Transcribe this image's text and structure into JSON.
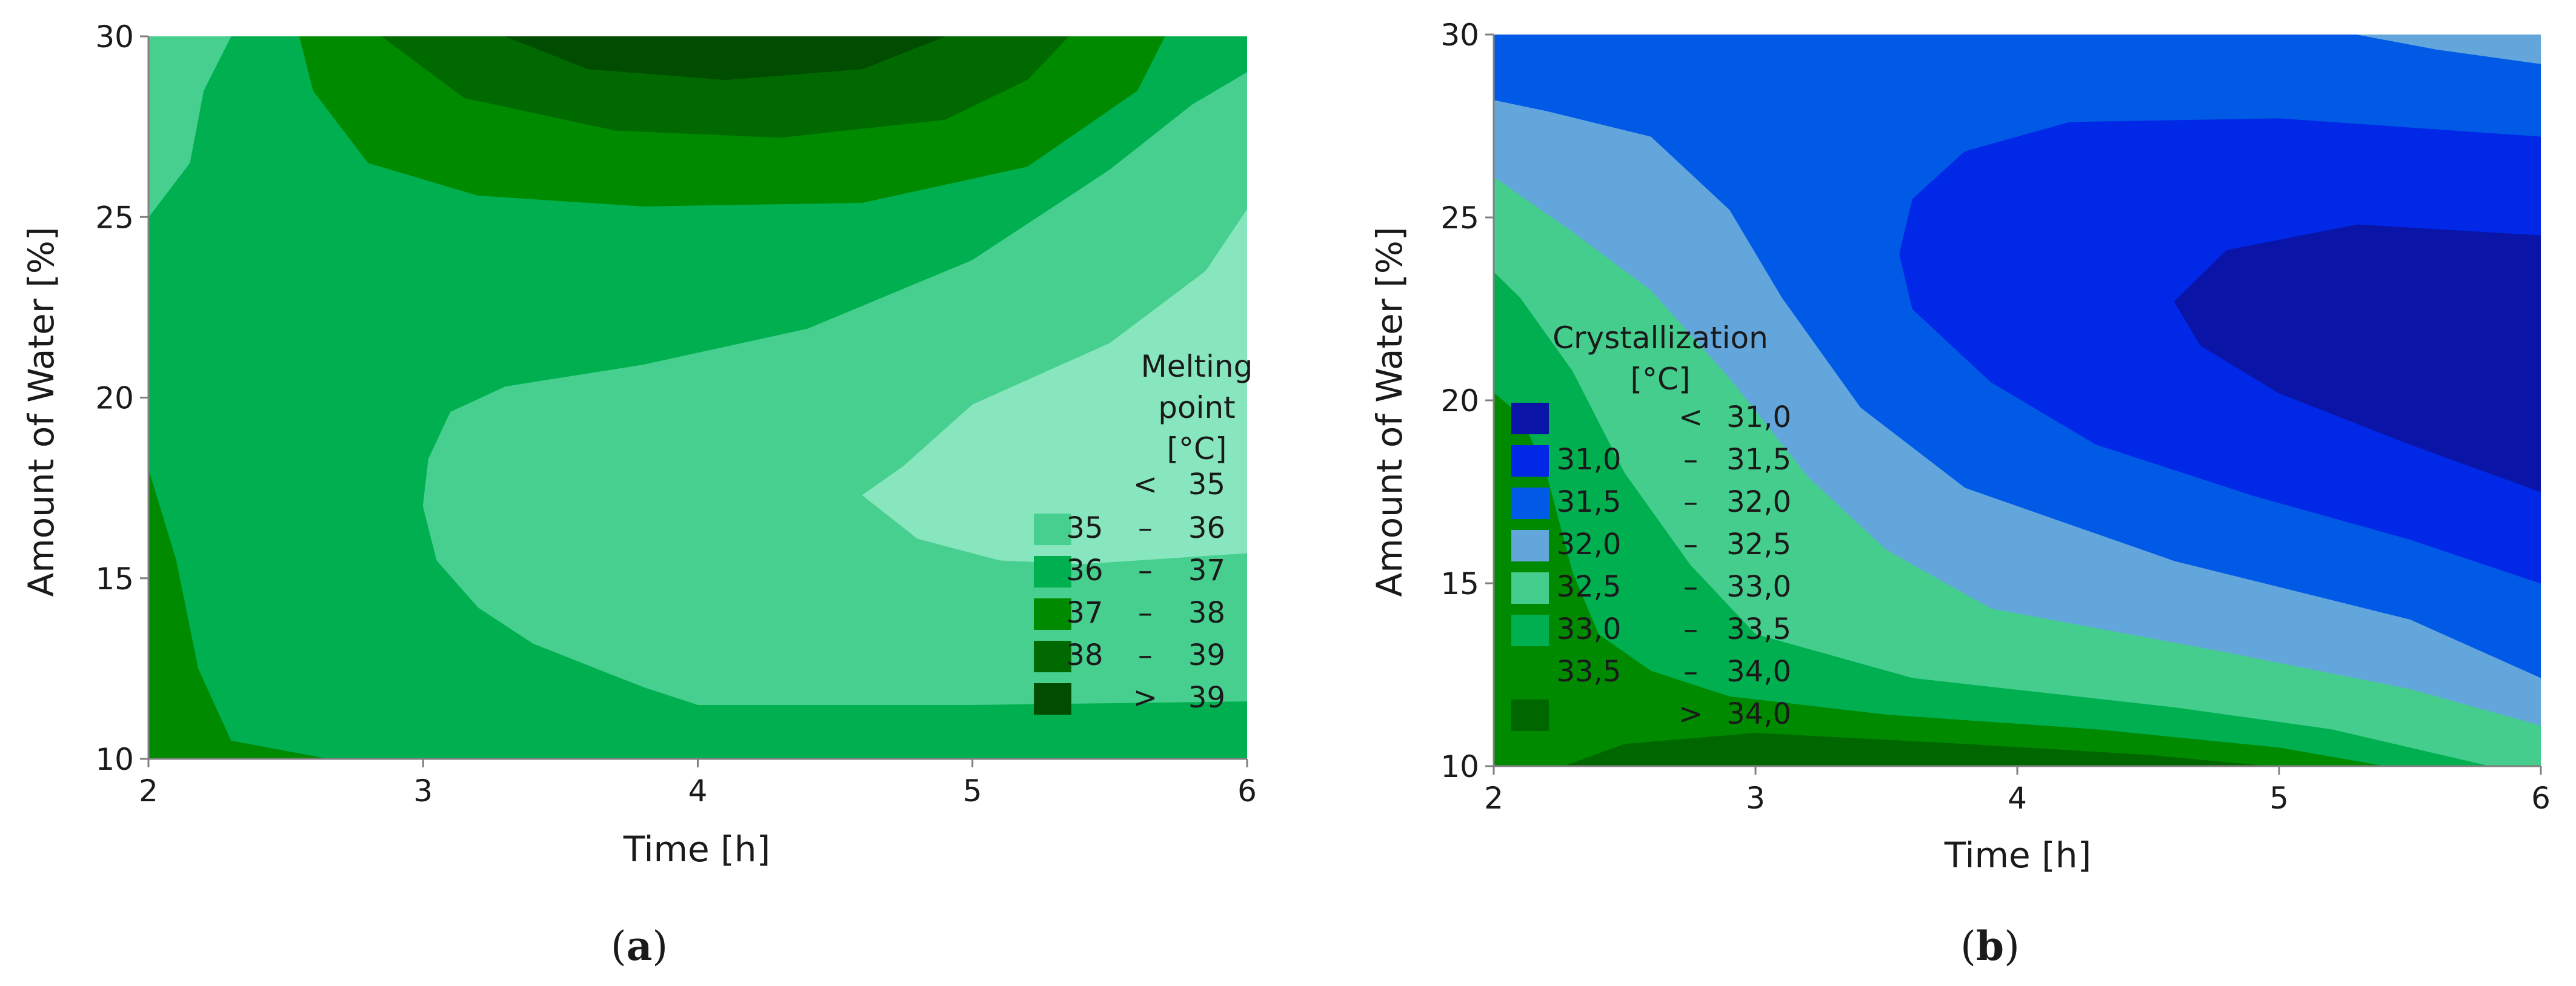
{
  "chart_data": [
    {
      "type": "contour",
      "panel_label": "a",
      "caption": {
        "open": "(",
        "letter": "a",
        "close": ")"
      },
      "xlabel": "Time  [h]",
      "ylabel": "Amount of Water  [%]",
      "xlim": [
        2,
        6
      ],
      "ylim": [
        10,
        30
      ],
      "xticks": [
        "2",
        "3",
        "4",
        "5",
        "6"
      ],
      "yticks": [
        "10",
        "15",
        "20",
        "25",
        "30"
      ],
      "legend": {
        "title": [
          "Melting",
          "point",
          "[°C]"
        ],
        "placement": "right, inside plot",
        "entries": [
          {
            "lo": "",
            "sep": "<",
            "hi": "35",
            "color": "#87e6be"
          },
          {
            "lo": "35",
            "sep": "–",
            "hi": "36",
            "color": "#47cf8f"
          },
          {
            "lo": "36",
            "sep": "–",
            "hi": "37",
            "color": "#00b050"
          },
          {
            "lo": "37",
            "sep": "–",
            "hi": "38",
            "color": "#008a00"
          },
          {
            "lo": "38",
            "sep": "–",
            "hi": "39",
            "color": "#006a00"
          },
          {
            "lo": "",
            "sep": ">",
            "hi": "39",
            "color": "#004c00"
          }
        ]
      },
      "regions": [
        {
          "level": "36 – 37",
          "color": "#00b050",
          "points": [
            [
              2,
              10
            ],
            [
              6,
              10
            ],
            [
              6,
              30
            ],
            [
              2,
              30
            ]
          ]
        },
        {
          "level": "37 – 38",
          "color": "#008a00",
          "points": [
            [
              2,
              10
            ],
            [
              2.65,
              10
            ],
            [
              2.3,
              10.5
            ],
            [
              2.18,
              12.5
            ],
            [
              2.1,
              15.5
            ],
            [
              2.0,
              18
            ],
            [
              2,
              18
            ]
          ]
        },
        {
          "level": "35 – 36",
          "color": "#47cf8f",
          "points": [
            [
              2.0,
              25
            ],
            [
              2.15,
              26.5
            ],
            [
              2.2,
              28.5
            ],
            [
              2.3,
              30
            ],
            [
              2.0,
              30
            ]
          ]
        },
        {
          "level": "35 – 36",
          "color": "#47cf8f",
          "points": [
            [
              6,
              11.6
            ],
            [
              5,
              11.5
            ],
            [
              4,
              11.5
            ],
            [
              3.8,
              12.0
            ],
            [
              3.4,
              13.2
            ],
            [
              3.2,
              14.2
            ],
            [
              3.05,
              15.5
            ],
            [
              3.0,
              17.0
            ],
            [
              3.02,
              18.3
            ],
            [
              3.1,
              19.6
            ],
            [
              3.3,
              20.3
            ],
            [
              3.8,
              20.9
            ],
            [
              4.4,
              21.9
            ],
            [
              5.0,
              23.8
            ],
            [
              5.5,
              26.3
            ],
            [
              5.8,
              28.1
            ],
            [
              6,
              29.0
            ]
          ]
        },
        {
          "level": "< 35",
          "color": "#87e6be",
          "points": [
            [
              6,
              15.7
            ],
            [
              5.4,
              15.4
            ],
            [
              5.1,
              15.5
            ],
            [
              4.8,
              16.1
            ],
            [
              4.6,
              17.3
            ],
            [
              4.75,
              18.1
            ],
            [
              5.0,
              19.8
            ],
            [
              5.5,
              21.5
            ],
            [
              5.85,
              23.5
            ],
            [
              6,
              25.2
            ]
          ]
        },
        {
          "level": "37 – 38",
          "color": "#008a00",
          "points": [
            [
              2.55,
              30
            ],
            [
              2.6,
              28.5
            ],
            [
              2.8,
              26.5
            ],
            [
              3.2,
              25.6
            ],
            [
              3.8,
              25.3
            ],
            [
              4.6,
              25.4
            ],
            [
              5.2,
              26.4
            ],
            [
              5.6,
              28.5
            ],
            [
              5.7,
              30
            ]
          ]
        },
        {
          "level": "38 – 39",
          "color": "#006a00",
          "points": [
            [
              2.85,
              30
            ],
            [
              3.15,
              28.3
            ],
            [
              3.7,
              27.4
            ],
            [
              4.3,
              27.2
            ],
            [
              4.9,
              27.7
            ],
            [
              5.2,
              28.8
            ],
            [
              5.35,
              30
            ]
          ]
        },
        {
          "level": "> 39",
          "color": "#004c00",
          "points": [
            [
              3.3,
              30
            ],
            [
              3.6,
              29.1
            ],
            [
              4.1,
              28.8
            ],
            [
              4.6,
              29.1
            ],
            [
              4.9,
              30
            ]
          ]
        }
      ]
    },
    {
      "type": "contour",
      "panel_label": "b",
      "caption": {
        "open": "(",
        "letter": "b",
        "close": ")"
      },
      "xlabel": "Time  [h]",
      "ylabel": "Amount of Water  [%]",
      "xlim": [
        2,
        6
      ],
      "ylim": [
        10,
        30
      ],
      "xticks": [
        "2",
        "3",
        "4",
        "5",
        "6"
      ],
      "yticks": [
        "10",
        "15",
        "20",
        "25",
        "30"
      ],
      "legend": {
        "title": [
          "Crystallization",
          "[°C]"
        ],
        "placement": "left, inside plot",
        "entries": [
          {
            "lo": "",
            "sep": "<",
            "hi": "31,0",
            "color": "#0a14a6"
          },
          {
            "lo": "31,0",
            "sep": "–",
            "hi": "31,5",
            "color": "#0028e6"
          },
          {
            "lo": "31,5",
            "sep": "–",
            "hi": "32,0",
            "color": "#005ae6"
          },
          {
            "lo": "32,0",
            "sep": "–",
            "hi": "32,5",
            "color": "#63a6dc"
          },
          {
            "lo": "32,5",
            "sep": "–",
            "hi": "33,0",
            "color": "#44cd8d"
          },
          {
            "lo": "33,0",
            "sep": "–",
            "hi": "33,5",
            "color": "#00b050"
          },
          {
            "lo": "33,5",
            "sep": "–",
            "hi": "34,0",
            "color": "#008a00"
          },
          {
            "lo": "",
            "sep": ">",
            "hi": "34,0",
            "color": "#006600"
          }
        ]
      },
      "regions": [
        {
          "level": "31,5 – 32,0",
          "color": "#005ae6",
          "points": [
            [
              2,
              10
            ],
            [
              6,
              10
            ],
            [
              6,
              30
            ],
            [
              2,
              30
            ]
          ]
        },
        {
          "level": "32,0 – 32,5",
          "color": "#63a6dc",
          "points": [
            [
              2,
              10
            ],
            [
              6,
              10
            ],
            [
              6,
              12.4
            ],
            [
              5.5,
              14.0
            ],
            [
              4.6,
              15.6
            ],
            [
              3.8,
              17.6
            ],
            [
              3.4,
              19.8
            ],
            [
              3.1,
              22.8
            ],
            [
              2.9,
              25.2
            ],
            [
              2.6,
              27.2
            ],
            [
              2.2,
              27.9
            ],
            [
              2,
              28.2
            ]
          ]
        },
        {
          "level": "32,0 – 32,5",
          "color": "#63a6dc",
          "points": [
            [
              6,
              29.2
            ],
            [
              5.6,
              29.6
            ],
            [
              5.3,
              30
            ],
            [
              6,
              30
            ]
          ]
        },
        {
          "level": "32,5 – 33,0",
          "color": "#44cd8d",
          "points": [
            [
              2,
              10
            ],
            [
              6,
              10
            ],
            [
              6,
              11.1
            ],
            [
              5.5,
              12.1
            ],
            [
              4.8,
              13.1
            ],
            [
              3.9,
              14.3
            ],
            [
              3.5,
              15.9
            ],
            [
              3.2,
              17.9
            ],
            [
              2.9,
              20.6
            ],
            [
              2.6,
              23.0
            ],
            [
              2.3,
              24.6
            ],
            [
              2,
              26.1
            ]
          ]
        },
        {
          "level": "33,0 – 33,5",
          "color": "#00b050",
          "points": [
            [
              2,
              10
            ],
            [
              5.8,
              10
            ],
            [
              5.2,
              11.0
            ],
            [
              4.6,
              11.6
            ],
            [
              3.6,
              12.4
            ],
            [
              3.0,
              13.6
            ],
            [
              2.75,
              15.5
            ],
            [
              2.5,
              18.0
            ],
            [
              2.3,
              20.8
            ],
            [
              2.1,
              22.8
            ],
            [
              2,
              23.5
            ]
          ]
        },
        {
          "level": "33,5 – 34,0",
          "color": "#008a00",
          "points": [
            [
              2,
              10
            ],
            [
              5.4,
              10
            ],
            [
              5.0,
              10.5
            ],
            [
              4.3,
              11.0
            ],
            [
              3.5,
              11.4
            ],
            [
              2.9,
              11.9
            ],
            [
              2.6,
              12.6
            ],
            [
              2.4,
              13.6
            ],
            [
              2.3,
              15.3
            ],
            [
              2.2,
              18.0
            ],
            [
              2.1,
              19.6
            ],
            [
              2,
              20.2
            ]
          ]
        },
        {
          "level": "> 34,0",
          "color": "#006600",
          "points": [
            [
              2.27,
              10
            ],
            [
              4.95,
              10
            ],
            [
              4.5,
              10.3
            ],
            [
              3.8,
              10.6
            ],
            [
              3.0,
              10.9
            ],
            [
              2.5,
              10.6
            ]
          ]
        },
        {
          "level": "31,0 – 31,5",
          "color": "#0028e6",
          "points": [
            [
              6,
              15.0
            ],
            [
              5.5,
              16.2
            ],
            [
              4.9,
              17.4
            ],
            [
              4.3,
              18.8
            ],
            [
              3.9,
              20.5
            ],
            [
              3.6,
              22.5
            ],
            [
              3.55,
              24.0
            ],
            [
              3.6,
              25.5
            ],
            [
              3.8,
              26.8
            ],
            [
              4.2,
              27.6
            ],
            [
              5.0,
              27.7
            ],
            [
              6,
              27.2
            ]
          ]
        },
        {
          "level": "< 31,0",
          "color": "#0a14a6",
          "points": [
            [
              6,
              17.5
            ],
            [
              5.5,
              18.8
            ],
            [
              5.0,
              20.2
            ],
            [
              4.7,
              21.5
            ],
            [
              4.6,
              22.7
            ],
            [
              4.8,
              24.1
            ],
            [
              5.3,
              24.8
            ],
            [
              6,
              24.5
            ]
          ]
        }
      ]
    }
  ]
}
